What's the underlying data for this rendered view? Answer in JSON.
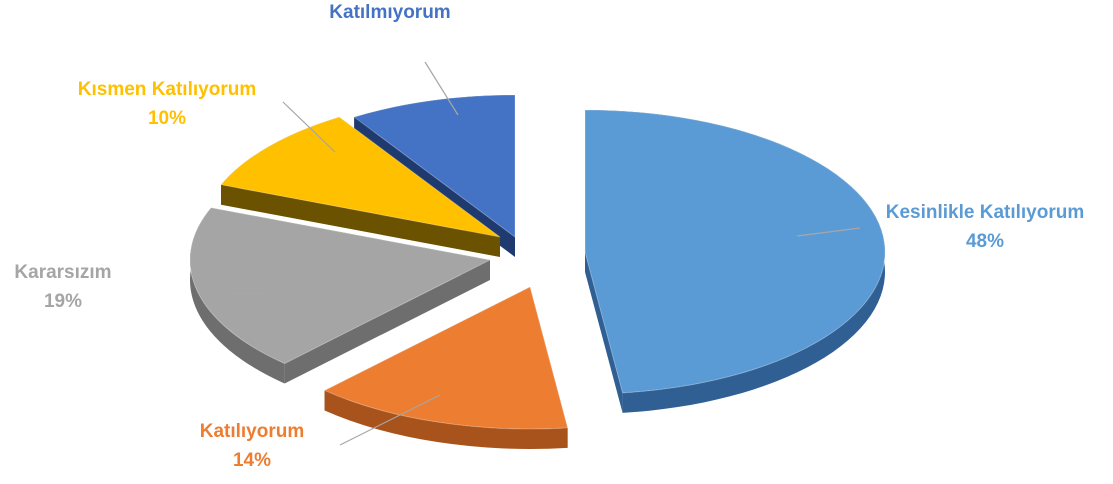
{
  "chart_data": {
    "type": "pie",
    "style": "3d-exploded",
    "title": "",
    "legend": "none",
    "slices": [
      {
        "name": "Kesinlikle Katılıyorum",
        "value": 48,
        "percent_label": "48%",
        "color": "#5b9bd5",
        "side_color": "#2f5f93"
      },
      {
        "name": "Katılıyorum",
        "value": 14,
        "percent_label": "14%",
        "color": "#ed7d31",
        "side_color": "#a8531c"
      },
      {
        "name": "Kararsızım",
        "value": 19,
        "percent_label": "19%",
        "color": "#a5a5a5",
        "side_color": "#6e6e6e"
      },
      {
        "name": "Kısmen Katılıyorum",
        "value": 10,
        "percent_label": "10%",
        "color": "#ffc000",
        "side_color": "#6b5200"
      },
      {
        "name": "Katılmıyorum",
        "value": 9,
        "percent_label": "",
        "color": "#4472c4",
        "side_color": "#1f3a6e"
      }
    ]
  }
}
